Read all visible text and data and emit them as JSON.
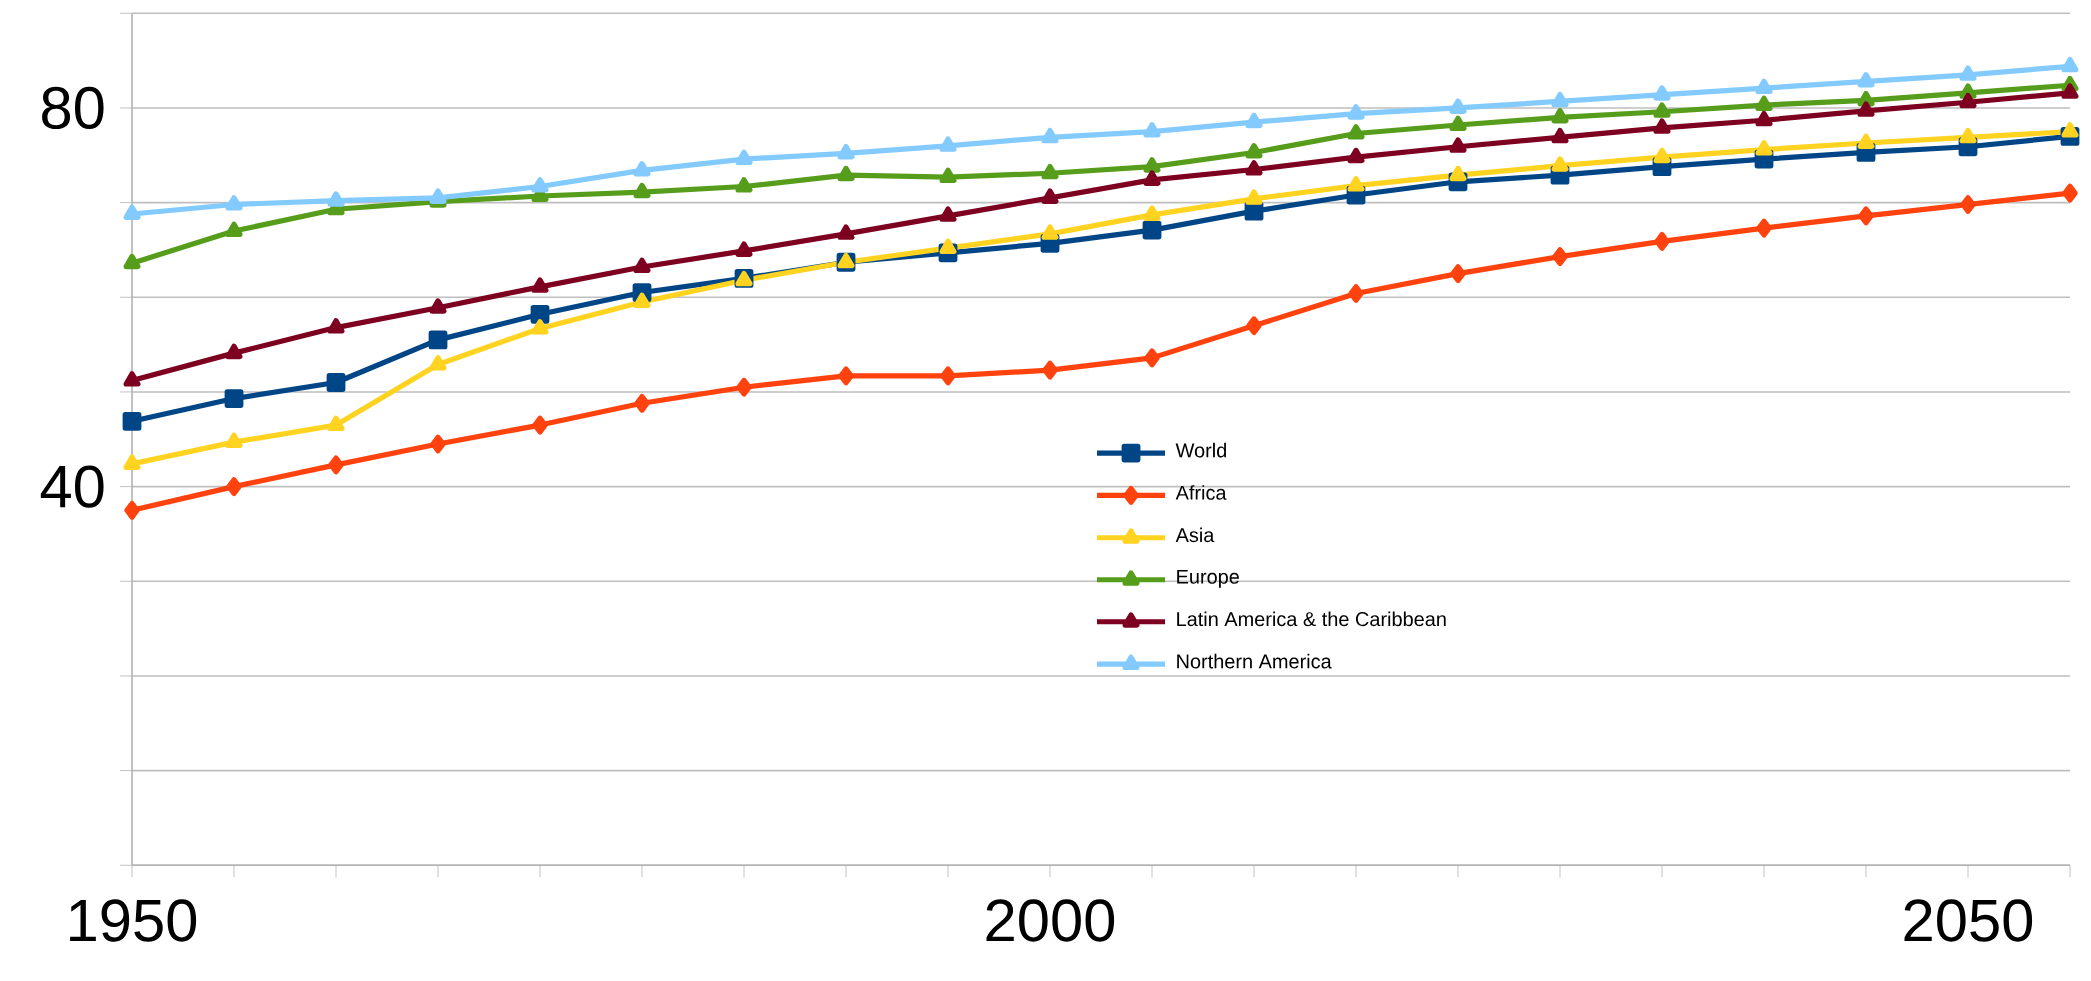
{
  "chart_data": {
    "type": "line",
    "categories": [
      "1950",
      null,
      null,
      null,
      null,
      null,
      null,
      null,
      null,
      "2000",
      null,
      null,
      null,
      null,
      null,
      null,
      null,
      null,
      "2050",
      null
    ],
    "ylim": [
      0,
      90
    ],
    "yticks": [
      {
        "value": 0,
        "label": null
      },
      {
        "value": 10,
        "label": null
      },
      {
        "value": 20,
        "label": null
      },
      {
        "value": 30,
        "label": null
      },
      40,
      {
        "value": 50,
        "label": null
      },
      {
        "value": 60,
        "label": null
      },
      {
        "value": 70,
        "label": null
      },
      80,
      {
        "value": 90,
        "label": null
      }
    ],
    "grid": "y",
    "legend": "center",
    "line_style": "solid",
    "series": [
      {
        "name": "World",
        "color": "#004586",
        "marker": "square",
        "values": [
          46.9,
          49.3,
          51.0,
          55.5,
          58.2,
          60.5,
          62.0,
          63.7,
          64.7,
          65.7,
          67.1,
          69.1,
          70.8,
          72.2,
          72.9,
          73.8,
          74.6,
          75.3,
          75.9,
          77.0
        ]
      },
      {
        "name": "Africa",
        "color": "#ff420e",
        "marker": "diamond",
        "values": [
          37.5,
          40.0,
          42.3,
          44.5,
          46.5,
          48.8,
          50.5,
          51.7,
          51.7,
          52.3,
          53.6,
          57.0,
          60.4,
          62.5,
          64.3,
          65.9,
          67.3,
          68.6,
          69.8,
          71.0
        ]
      },
      {
        "name": "Asia",
        "color": "#ffd320",
        "marker": "triangle",
        "values": [
          42.4,
          44.7,
          46.5,
          52.9,
          56.7,
          59.5,
          61.8,
          63.7,
          65.2,
          66.7,
          68.7,
          70.4,
          71.8,
          72.9,
          73.9,
          74.8,
          75.6,
          76.3,
          76.9,
          77.5
        ]
      },
      {
        "name": "Europe",
        "color": "#579d1c",
        "marker": "triangle",
        "values": [
          63.6,
          67.0,
          69.3,
          70.1,
          70.7,
          71.1,
          71.7,
          72.9,
          72.7,
          73.1,
          73.8,
          75.3,
          77.3,
          78.2,
          79.0,
          79.6,
          80.3,
          80.8,
          81.6,
          82.4
        ]
      },
      {
        "name": "Latin America & the Caribbean",
        "color": "#7e0021",
        "marker": "triangle",
        "values": [
          51.2,
          54.1,
          56.8,
          58.9,
          61.1,
          63.2,
          64.9,
          66.7,
          68.6,
          70.5,
          72.4,
          73.5,
          74.8,
          75.9,
          76.9,
          77.9,
          78.7,
          79.7,
          80.6,
          81.6
        ]
      },
      {
        "name": "Northern America",
        "color": "#83caff",
        "marker": "triangle",
        "values": [
          68.8,
          69.8,
          70.2,
          70.5,
          71.7,
          73.4,
          74.6,
          75.2,
          76.0,
          76.9,
          77.5,
          78.5,
          79.4,
          80.0,
          80.7,
          81.4,
          82.1,
          82.8,
          83.5,
          84.4
        ]
      }
    ]
  }
}
